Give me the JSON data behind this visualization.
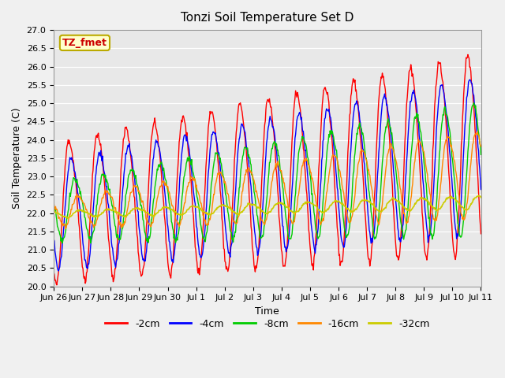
{
  "title": "Tonzi Soil Temperature Set D",
  "xlabel": "Time",
  "ylabel": "Soil Temperature (C)",
  "ylim": [
    20.0,
    27.0
  ],
  "yticks": [
    20.0,
    20.5,
    21.0,
    21.5,
    22.0,
    22.5,
    23.0,
    23.5,
    24.0,
    24.5,
    25.0,
    25.5,
    26.0,
    26.5,
    27.0
  ],
  "colors": {
    "-2cm": "#ff0000",
    "-4cm": "#0000ff",
    "-8cm": "#00cc00",
    "-16cm": "#ff8800",
    "-32cm": "#cccc00"
  },
  "legend_labels": [
    "-2cm",
    "-4cm",
    "-8cm",
    "-16cm",
    "-32cm"
  ],
  "annotation_text": "TZ_fmet",
  "annotation_bg": "#ffffcc",
  "annotation_border": "#bbaa00",
  "plot_bg": "#e8e8e8",
  "fig_bg": "#f0f0f0",
  "tick_labels": [
    "Jun 26",
    "Jun 27",
    "Jun 28",
    "Jun 29",
    "Jun 30",
    "Jul 1",
    "Jul 2",
    "Jul 3",
    "Jul 4",
    "Jul 5",
    "Jul 6",
    "Jul 7",
    "Jul 8",
    "Jul 9",
    "Jul 10",
    "Jul 11"
  ],
  "n_days": 16,
  "points_per_day": 48
}
